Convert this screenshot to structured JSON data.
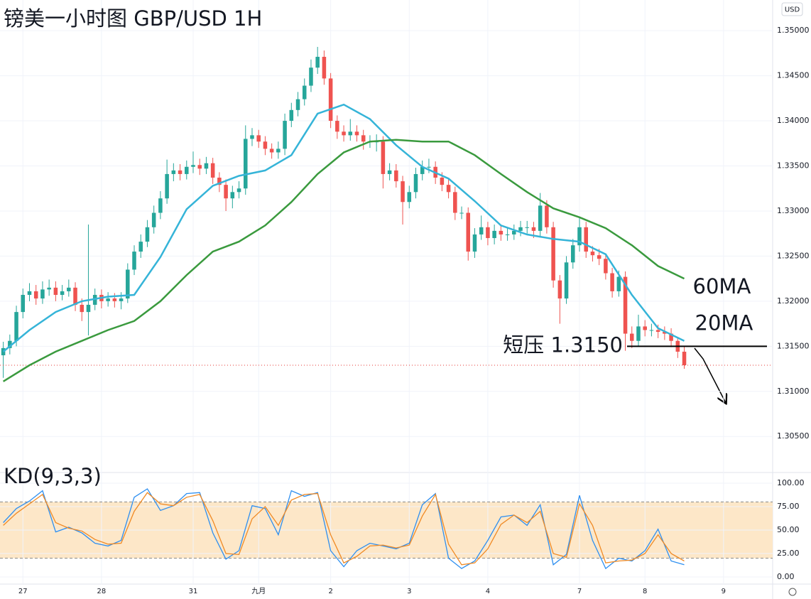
{
  "chart_data": [
    {
      "type": "candlestick",
      "title": "镑美一小时图 GBP/USD 1H",
      "currency": "USD",
      "x": [
        0,
        1,
        2,
        3,
        4,
        5,
        6,
        7,
        8,
        9,
        10,
        11,
        12,
        13,
        14,
        15,
        16,
        17,
        18,
        19,
        20,
        21,
        22,
        23,
        24,
        25,
        26,
        27,
        28,
        29,
        30,
        31,
        32,
        33,
        34,
        35,
        36,
        37,
        38,
        39,
        40,
        41,
        42,
        43,
        44,
        45,
        46,
        47,
        48,
        49,
        50,
        51,
        52,
        53,
        54,
        55,
        56,
        57,
        58,
        59,
        60,
        61,
        62,
        63,
        64,
        65,
        66,
        67,
        68,
        69,
        70,
        71,
        72,
        73,
        74,
        75,
        76,
        77,
        78,
        79,
        80,
        81,
        82,
        83,
        84,
        85,
        86,
        87,
        88,
        89,
        90,
        91,
        92,
        93,
        94,
        95,
        96,
        97,
        98,
        99,
        100,
        101,
        102,
        103,
        104
      ],
      "open": [
        1.314,
        1.3148,
        1.3156,
        1.3188,
        1.3207,
        1.3211,
        1.3203,
        1.3213,
        1.3215,
        1.3207,
        1.3211,
        1.3215,
        1.3196,
        1.3188,
        1.3196,
        1.3207,
        1.32,
        1.3203,
        1.32,
        1.3203,
        1.3235,
        1.3255,
        1.3266,
        1.3282,
        1.3298,
        1.3314,
        1.3341,
        1.3345,
        1.3341,
        1.3349,
        1.3351,
        1.3347,
        1.3353,
        1.3337,
        1.3329,
        1.3314,
        1.3321,
        1.3325,
        1.338,
        1.3384,
        1.3377,
        1.3369,
        1.3365,
        1.3369,
        1.34,
        1.3412,
        1.3424,
        1.3439,
        1.3459,
        1.3471,
        1.3447,
        1.34,
        1.3388,
        1.3384,
        1.3388,
        1.3384,
        1.3377,
        1.3377,
        1.3377,
        1.3341,
        1.3345,
        1.3333,
        1.331,
        1.3321,
        1.3341,
        1.3349,
        1.3349,
        1.3337,
        1.3329,
        1.3321,
        1.3298,
        1.3298,
        1.3255,
        1.3274,
        1.3282,
        1.327,
        1.3278,
        1.3274,
        1.3274,
        1.3278,
        1.3282,
        1.3282,
        1.3278,
        1.3306,
        1.3282,
        1.3223,
        1.3203,
        1.3243,
        1.3262,
        1.3282,
        1.3255,
        1.3251,
        1.3247,
        1.3231,
        1.3211,
        1.3227,
        1.3164,
        1.3156,
        1.3172,
        1.3168,
        1.3168,
        1.3166,
        1.3164,
        1.3156,
        1.3144
      ],
      "high": [
        1.3155,
        1.3163,
        1.3195,
        1.3214,
        1.322,
        1.3218,
        1.3222,
        1.3224,
        1.3222,
        1.3218,
        1.3224,
        1.3221,
        1.3203,
        1.3285,
        1.3214,
        1.3213,
        1.321,
        1.3209,
        1.321,
        1.3242,
        1.3262,
        1.3274,
        1.329,
        1.3306,
        1.3322,
        1.3357,
        1.3353,
        1.3352,
        1.3356,
        1.3366,
        1.3358,
        1.336,
        1.3359,
        1.3343,
        1.3335,
        1.3328,
        1.3333,
        1.3395,
        1.3392,
        1.339,
        1.3383,
        1.3375,
        1.3377,
        1.3408,
        1.342,
        1.3432,
        1.3447,
        1.3468,
        1.3482,
        1.3478,
        1.3453,
        1.3406,
        1.3395,
        1.3402,
        1.3395,
        1.339,
        1.3384,
        1.3385,
        1.3383,
        1.3353,
        1.3352,
        1.3339,
        1.3328,
        1.3348,
        1.3356,
        1.3358,
        1.3355,
        1.3343,
        1.3335,
        1.3327,
        1.3305,
        1.3304,
        1.3281,
        1.3295,
        1.3288,
        1.3285,
        1.3284,
        1.3281,
        1.3285,
        1.3289,
        1.3289,
        1.3288,
        1.332,
        1.3312,
        1.3288,
        1.3229,
        1.325,
        1.3269,
        1.3292,
        1.3288,
        1.3261,
        1.3258,
        1.3253,
        1.3237,
        1.3234,
        1.3233,
        1.3172,
        1.3185,
        1.3179,
        1.3175,
        1.3174,
        1.3172,
        1.317,
        1.316,
        1.315
      ],
      "low": [
        1.3115,
        1.3141,
        1.315,
        1.3181,
        1.32,
        1.3196,
        1.3197,
        1.3206,
        1.32,
        1.3201,
        1.3205,
        1.3189,
        1.3178,
        1.3162,
        1.319,
        1.3192,
        1.3194,
        1.3193,
        1.3191,
        1.3198,
        1.3229,
        1.3248,
        1.326,
        1.3275,
        1.3291,
        1.3308,
        1.3333,
        1.3334,
        1.3335,
        1.3342,
        1.334,
        1.3341,
        1.333,
        1.3321,
        1.33,
        1.3303,
        1.3314,
        1.3318,
        1.3372,
        1.337,
        1.3362,
        1.3358,
        1.3358,
        1.3362,
        1.3393,
        1.3405,
        1.3417,
        1.3432,
        1.3452,
        1.344,
        1.3392,
        1.338,
        1.3377,
        1.3378,
        1.3377,
        1.3368,
        1.337,
        1.3366,
        1.3325,
        1.3334,
        1.3326,
        1.3285,
        1.3303,
        1.3314,
        1.3334,
        1.3342,
        1.333,
        1.3322,
        1.3314,
        1.329,
        1.3291,
        1.3245,
        1.3248,
        1.3268,
        1.3262,
        1.3263,
        1.3267,
        1.3267,
        1.3268,
        1.3272,
        1.3275,
        1.327,
        1.3272,
        1.3275,
        1.3215,
        1.3175,
        1.3197,
        1.3236,
        1.3255,
        1.3248,
        1.3244,
        1.324,
        1.3224,
        1.3204,
        1.3205,
        1.3145,
        1.3148,
        1.315,
        1.3161,
        1.3161,
        1.3159,
        1.3157,
        1.3149,
        1.3137,
        1.3125
      ],
      "close": [
        1.3148,
        1.3156,
        1.3188,
        1.3207,
        1.3211,
        1.3203,
        1.3213,
        1.3215,
        1.3207,
        1.3211,
        1.3215,
        1.3196,
        1.3188,
        1.3196,
        1.3207,
        1.32,
        1.3203,
        1.32,
        1.3203,
        1.3235,
        1.3255,
        1.3266,
        1.3282,
        1.3298,
        1.3314,
        1.3341,
        1.3345,
        1.3341,
        1.3349,
        1.3351,
        1.3347,
        1.3353,
        1.3337,
        1.3329,
        1.3314,
        1.3321,
        1.3325,
        1.338,
        1.3384,
        1.3377,
        1.3369,
        1.3365,
        1.3369,
        1.34,
        1.3412,
        1.3424,
        1.3439,
        1.3459,
        1.3471,
        1.3447,
        1.34,
        1.3388,
        1.3384,
        1.3388,
        1.3384,
        1.3377,
        1.3377,
        1.3377,
        1.3341,
        1.3345,
        1.3333,
        1.331,
        1.3321,
        1.3341,
        1.3349,
        1.3349,
        1.3337,
        1.3329,
        1.3321,
        1.3298,
        1.3298,
        1.3255,
        1.3274,
        1.3282,
        1.327,
        1.3278,
        1.3274,
        1.3274,
        1.3278,
        1.3282,
        1.3282,
        1.3278,
        1.3306,
        1.3282,
        1.3223,
        1.3203,
        1.3243,
        1.3262,
        1.3282,
        1.3255,
        1.3251,
        1.3247,
        1.3231,
        1.3211,
        1.3227,
        1.3164,
        1.3156,
        1.3172,
        1.3168,
        1.3168,
        1.3166,
        1.3164,
        1.3156,
        1.3144,
        1.3129
      ],
      "up_color": "#26a69a",
      "down_color": "#ef5350",
      "last_price_color": "#e53935",
      "xlim": [
        -0.5,
        117.5
      ],
      "xticks": [
        {
          "value": 3,
          "label": "27"
        },
        {
          "value": 15,
          "label": "28"
        },
        {
          "value": 29,
          "label": "31"
        },
        {
          "value": 39,
          "label": "九月"
        },
        {
          "value": 50,
          "label": "2"
        },
        {
          "value": 62,
          "label": "3"
        },
        {
          "value": 74,
          "label": "4"
        },
        {
          "value": 88,
          "label": "7"
        },
        {
          "value": 98,
          "label": "8"
        },
        {
          "value": 110,
          "label": "9"
        }
      ],
      "ylim": [
        1.301,
        1.3534
      ],
      "yticks": [
        {
          "value": 1.305,
          "label": "1.30500"
        },
        {
          "value": 1.31,
          "label": "1.31000"
        },
        {
          "value": 1.315,
          "label": "1.31500"
        },
        {
          "value": 1.32,
          "label": "1.32000"
        },
        {
          "value": 1.325,
          "label": "1.32500"
        },
        {
          "value": 1.33,
          "label": "1.33000"
        },
        {
          "value": 1.335,
          "label": "1.33500"
        },
        {
          "value": 1.34,
          "label": "1.34000"
        },
        {
          "value": 1.345,
          "label": "1.34500"
        },
        {
          "value": 1.35,
          "label": "1.35000"
        }
      ],
      "grid": true,
      "overlays": [
        {
          "name": "20MA",
          "color": "#35b4d8",
          "x": [
            0,
            4,
            8,
            12,
            16,
            20,
            24,
            28,
            32,
            36,
            40,
            44,
            48,
            52,
            56,
            60,
            64,
            68,
            72,
            76,
            80,
            84,
            88,
            92,
            96,
            100,
            104
          ],
          "values": [
            1.3144,
            1.3168,
            1.3188,
            1.32,
            1.3205,
            1.3207,
            1.3249,
            1.3302,
            1.3328,
            1.3339,
            1.3345,
            1.3362,
            1.3408,
            1.3418,
            1.3402,
            1.3373,
            1.3349,
            1.3336,
            1.3311,
            1.3284,
            1.3274,
            1.3269,
            1.3266,
            1.3252,
            1.3207,
            1.317,
            1.3156
          ]
        },
        {
          "name": "60MA",
          "color": "#3a9a3e",
          "x": [
            0,
            4,
            8,
            12,
            16,
            20,
            24,
            28,
            32,
            36,
            40,
            44,
            48,
            52,
            56,
            60,
            64,
            68,
            72,
            76,
            80,
            84,
            88,
            92,
            96,
            100,
            104
          ],
          "values": [
            1.3111,
            1.3129,
            1.3144,
            1.3156,
            1.3168,
            1.3178,
            1.32,
            1.3229,
            1.3255,
            1.3266,
            1.3284,
            1.331,
            1.3341,
            1.3365,
            1.3377,
            1.3379,
            1.3377,
            1.3377,
            1.3362,
            1.3341,
            1.3321,
            1.3303,
            1.3293,
            1.3281,
            1.3262,
            1.3239,
            1.3225
          ]
        }
      ],
      "annotation": {
        "text": "短压 1.3150",
        "value": 1.315
      }
    },
    {
      "type": "kd",
      "title": "KD(9,3,3)",
      "x": [
        0,
        2,
        4,
        6,
        8,
        10,
        12,
        14,
        16,
        18,
        20,
        22,
        24,
        26,
        28,
        30,
        32,
        34,
        36,
        38,
        40,
        42,
        44,
        46,
        48,
        50,
        52,
        54,
        56,
        58,
        60,
        62,
        64,
        66,
        68,
        70,
        72,
        74,
        76,
        78,
        80,
        82,
        84,
        86,
        88,
        90,
        92,
        94,
        96,
        98,
        100,
        102,
        104
      ],
      "series": [
        {
          "color": "#2e8ff0",
          "values": [
            58,
            73,
            81,
            92,
            48,
            53,
            47,
            36,
            33,
            39,
            85,
            94,
            71,
            76,
            89,
            90,
            47,
            19,
            28,
            76,
            73,
            45,
            92,
            86,
            90,
            28,
            11,
            28,
            36,
            33,
            30,
            36,
            77,
            89,
            20,
            9,
            17,
            39,
            64,
            66,
            55,
            77,
            13,
            24,
            87,
            39,
            9,
            20,
            17,
            28,
            51,
            17,
            13
          ]
        },
        {
          "color": "#f08a24",
          "values": [
            55,
            68,
            78,
            88,
            58,
            52,
            49,
            40,
            35,
            36,
            70,
            90,
            78,
            76,
            85,
            88,
            60,
            25,
            24,
            62,
            75,
            55,
            82,
            88,
            89,
            45,
            15,
            22,
            33,
            34,
            31,
            34,
            65,
            88,
            35,
            13,
            15,
            30,
            56,
            66,
            58,
            70,
            25,
            21,
            78,
            55,
            15,
            17,
            18,
            25,
            45,
            25,
            17
          ]
        }
      ],
      "xlim": [
        -0.5,
        117.5
      ],
      "ylim": [
        -7.6,
        111.4
      ],
      "yticks": [
        {
          "value": 0,
          "label": "0.00"
        },
        {
          "value": 25,
          "label": "25.00"
        },
        {
          "value": 50,
          "label": "50.00"
        },
        {
          "value": 75,
          "label": "75.00"
        },
        {
          "value": 100,
          "label": "100.00"
        }
      ],
      "band": [
        20,
        80
      ],
      "band_color": "#fde7c8",
      "grid": true
    }
  ]
}
